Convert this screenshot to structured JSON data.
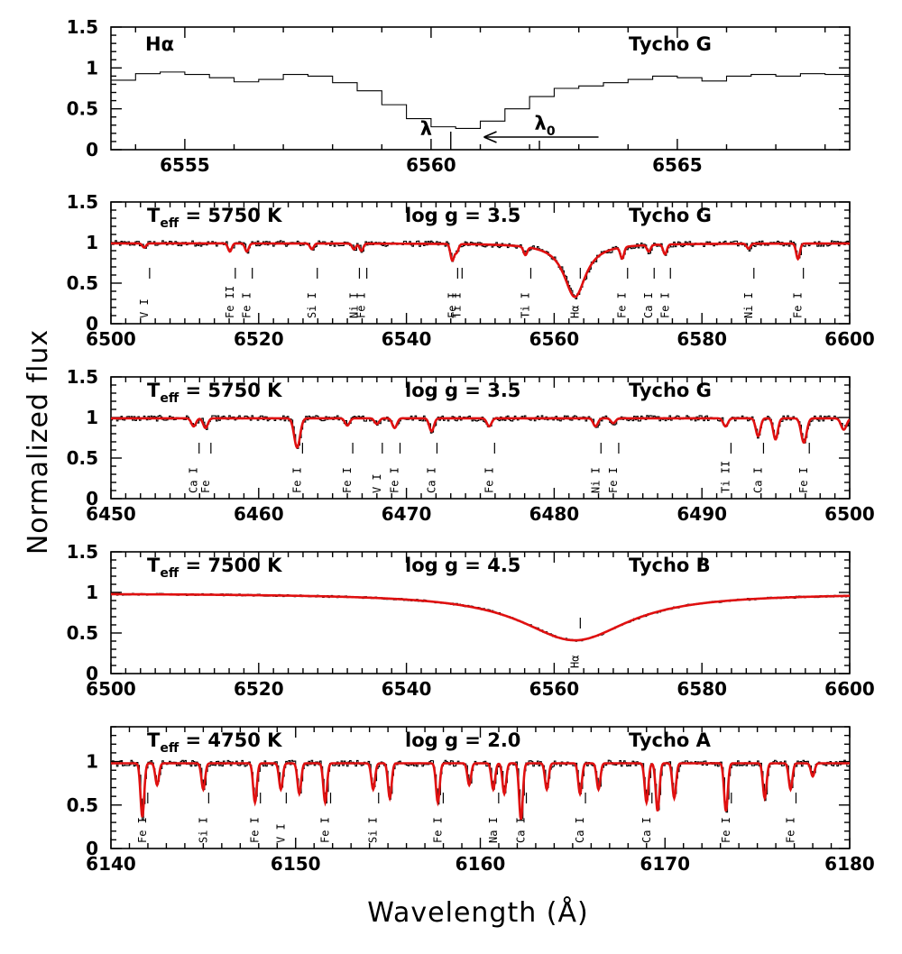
{
  "figure": {
    "xlabel": "Wavelength (Å)",
    "ylabel": "Normalized flux"
  },
  "colors": {
    "observed": "#000000",
    "model": "#e01010"
  },
  "chart_data": [
    {
      "type": "line",
      "panel": "halpha-zoom",
      "xlim": [
        6553.5,
        6568.5
      ],
      "ylim": [
        0,
        1.5
      ],
      "xticks": [
        "6555",
        "6560",
        "6565"
      ],
      "yticks": [
        "0",
        "0.5",
        "1",
        "1.5"
      ],
      "top_left_label": "Hα",
      "top_right_label": "Tycho G",
      "markers": {
        "lambda": "λ",
        "lambda0": "λ0",
        "lambda_x": 6560.4,
        "lambda0_x": 6561.0
      },
      "series": [
        {
          "style": "step",
          "x": [
            6553.5,
            6554,
            6554.5,
            6555,
            6555.5,
            6556,
            6556.5,
            6557,
            6557.5,
            6558,
            6558.5,
            6559,
            6559.5,
            6560,
            6560.5,
            6561,
            6561.5,
            6562,
            6562.5,
            6563,
            6563.5,
            6564,
            6564.5,
            6565,
            6565.5,
            6566,
            6566.5,
            6567,
            6567.5,
            6568
          ],
          "y": [
            0.85,
            0.93,
            0.95,
            0.92,
            0.88,
            0.83,
            0.86,
            0.92,
            0.9,
            0.82,
            0.72,
            0.55,
            0.38,
            0.28,
            0.26,
            0.35,
            0.5,
            0.65,
            0.75,
            0.78,
            0.82,
            0.86,
            0.9,
            0.88,
            0.84,
            0.9,
            0.92,
            0.9,
            0.93,
            0.92
          ]
        }
      ]
    },
    {
      "type": "line",
      "panel": "tycho-g-6500",
      "xlim": [
        6500,
        6600
      ],
      "ylim": [
        0,
        1.5
      ],
      "xticks": [
        "6500",
        "6520",
        "6540",
        "6560",
        "6580",
        "6600"
      ],
      "yticks": [
        "0",
        "0.5",
        "1",
        "1.5"
      ],
      "teff_label": "T",
      "teff_sub": "eff",
      "teff_value": "= 5750 K",
      "logg_label": "log g = 3.5",
      "star_label": "Tycho G",
      "continuum": 0.99,
      "hydrogen_line": {
        "center": 6562.8,
        "depth": 0.66,
        "width": 1.8
      },
      "lines": [
        {
          "x": 6504.5,
          "depth": 0.05,
          "width": 0.35,
          "label": "V I"
        },
        {
          "x": 6516.1,
          "depth": 0.1,
          "width": 0.35,
          "label": "Fe II"
        },
        {
          "x": 6518.4,
          "depth": 0.1,
          "width": 0.35,
          "label": "Fe I"
        },
        {
          "x": 6527.2,
          "depth": 0.07,
          "width": 0.35,
          "label": "Si I"
        },
        {
          "x": 6532.9,
          "depth": 0.07,
          "width": 0.35,
          "label": "Ni I"
        },
        {
          "x": 6533.9,
          "depth": 0.09,
          "width": 0.35,
          "label": "Fe I"
        },
        {
          "x": 6546.2,
          "depth": 0.2,
          "width": 0.35,
          "label": "Fe I"
        },
        {
          "x": 6546.8,
          "depth": 0.1,
          "width": 0.35,
          "label": "Ti I"
        },
        {
          "x": 6556.1,
          "depth": 0.1,
          "width": 0.35,
          "label": "Ti I"
        },
        {
          "x": 6562.8,
          "depth": 0.0,
          "width": 0.35,
          "label": "Hα"
        },
        {
          "x": 6569.2,
          "depth": 0.14,
          "width": 0.35,
          "label": "Fe I"
        },
        {
          "x": 6572.8,
          "depth": 0.08,
          "width": 0.35,
          "label": "Ca I"
        },
        {
          "x": 6575.0,
          "depth": 0.12,
          "width": 0.35,
          "label": "Fe I"
        },
        {
          "x": 6586.3,
          "depth": 0.06,
          "width": 0.35,
          "label": "Ni I"
        },
        {
          "x": 6593.0,
          "depth": 0.19,
          "width": 0.35,
          "label": "Fe I"
        }
      ]
    },
    {
      "type": "line",
      "panel": "tycho-g-6450",
      "xlim": [
        6450,
        6500
      ],
      "ylim": [
        0,
        1.5
      ],
      "xticks": [
        "6450",
        "6460",
        "6470",
        "6480",
        "6490",
        "6500"
      ],
      "yticks": [
        "0",
        "0.5",
        "1",
        "1.5"
      ],
      "teff_label": "T",
      "teff_sub": "eff",
      "teff_value": "= 5750 K",
      "logg_label": "log g = 3.5",
      "star_label": "Tycho G",
      "continuum": 0.99,
      "lines": [
        {
          "x": 6455.6,
          "depth": 0.1,
          "width": 0.22,
          "label": "Ca I"
        },
        {
          "x": 6456.4,
          "depth": 0.12,
          "width": 0.22,
          "label": "Fe"
        },
        {
          "x": 6462.6,
          "depth": 0.36,
          "width": 0.28,
          "label": "Fe I"
        },
        {
          "x": 6466.0,
          "depth": 0.09,
          "width": 0.22,
          "label": "Fe I"
        },
        {
          "x": 6468.0,
          "depth": 0.07,
          "width": 0.22,
          "label": "V I"
        },
        {
          "x": 6469.2,
          "depth": 0.12,
          "width": 0.22,
          "label": "Fe I"
        },
        {
          "x": 6471.7,
          "depth": 0.16,
          "width": 0.22,
          "label": "Ca I"
        },
        {
          "x": 6475.6,
          "depth": 0.1,
          "width": 0.22,
          "label": "Fe I"
        },
        {
          "x": 6482.8,
          "depth": 0.1,
          "width": 0.22,
          "label": "Ni I"
        },
        {
          "x": 6484.0,
          "depth": 0.06,
          "width": 0.22,
          "label": "Fe I"
        },
        {
          "x": 6491.6,
          "depth": 0.1,
          "width": 0.22,
          "label": "Ti II"
        },
        {
          "x": 6493.8,
          "depth": 0.22,
          "width": 0.22,
          "label": "Ca I"
        },
        {
          "x": 6494.98,
          "depth": 0.26,
          "width": 0.22,
          "label": ""
        },
        {
          "x": 6496.9,
          "depth": 0.3,
          "width": 0.26,
          "label": "Fe I"
        },
        {
          "x": 6499.6,
          "depth": 0.14,
          "width": 0.26,
          "label": ""
        }
      ]
    },
    {
      "type": "line",
      "panel": "tycho-b",
      "xlim": [
        6500,
        6600
      ],
      "ylim": [
        0,
        1.5
      ],
      "xticks": [
        "6500",
        "6520",
        "6540",
        "6560",
        "6580",
        "6600"
      ],
      "yticks": [
        "0",
        "0.5",
        "1",
        "1.5"
      ],
      "teff_label": "T",
      "teff_sub": "eff",
      "teff_value": "= 7500 K",
      "logg_label": "log g = 4.5",
      "star_label": "Tycho B",
      "continuum": 0.99,
      "hydrogen_line": {
        "center": 6562.8,
        "depth": 0.58,
        "width": 9.0
      },
      "lines": [
        {
          "x": 6562.8,
          "depth": 0.0,
          "width": 0.5,
          "label": "Hα"
        }
      ]
    },
    {
      "type": "line",
      "panel": "tycho-a",
      "xlim": [
        6140,
        6180
      ],
      "ylim": [
        0,
        1.4
      ],
      "xticks": [
        "6140",
        "6150",
        "6160",
        "6170",
        "6180"
      ],
      "yticks": [
        "0",
        "0.5",
        "1"
      ],
      "teff_label": "T",
      "teff_sub": "eff",
      "teff_value": "= 4750 K",
      "logg_label": "log g = 2.0",
      "star_label": "Tycho A",
      "continuum": 0.98,
      "lines": [
        {
          "x": 6141.7,
          "depth": 0.62,
          "width": 0.14,
          "label": "Fe I"
        },
        {
          "x": 6142.5,
          "depth": 0.25,
          "width": 0.14,
          "label": ""
        },
        {
          "x": 6145.0,
          "depth": 0.3,
          "width": 0.14,
          "label": "Si I"
        },
        {
          "x": 6147.8,
          "depth": 0.45,
          "width": 0.14,
          "label": "Fe I"
        },
        {
          "x": 6149.2,
          "depth": 0.3,
          "width": 0.14,
          "label": "V I"
        },
        {
          "x": 6150.2,
          "depth": 0.35,
          "width": 0.14,
          "label": ""
        },
        {
          "x": 6151.6,
          "depth": 0.45,
          "width": 0.14,
          "label": "Fe I"
        },
        {
          "x": 6154.2,
          "depth": 0.3,
          "width": 0.14,
          "label": "Si I"
        },
        {
          "x": 6155.1,
          "depth": 0.4,
          "width": 0.14,
          "label": ""
        },
        {
          "x": 6157.7,
          "depth": 0.45,
          "width": 0.14,
          "label": "Fe I"
        },
        {
          "x": 6159.4,
          "depth": 0.25,
          "width": 0.14,
          "label": ""
        },
        {
          "x": 6160.7,
          "depth": 0.3,
          "width": 0.14,
          "label": "Na I"
        },
        {
          "x": 6161.3,
          "depth": 0.35,
          "width": 0.14,
          "label": ""
        },
        {
          "x": 6162.2,
          "depth": 0.65,
          "width": 0.14,
          "label": "Ca I"
        },
        {
          "x": 6163.6,
          "depth": 0.3,
          "width": 0.14,
          "label": ""
        },
        {
          "x": 6165.4,
          "depth": 0.35,
          "width": 0.14,
          "label": "Ca I"
        },
        {
          "x": 6166.4,
          "depth": 0.3,
          "width": 0.14,
          "label": ""
        },
        {
          "x": 6169.0,
          "depth": 0.45,
          "width": 0.14,
          "label": "Ca I"
        },
        {
          "x": 6169.6,
          "depth": 0.55,
          "width": 0.14,
          "label": ""
        },
        {
          "x": 6170.5,
          "depth": 0.4,
          "width": 0.14,
          "label": ""
        },
        {
          "x": 6173.3,
          "depth": 0.55,
          "width": 0.14,
          "label": "Fe I"
        },
        {
          "x": 6175.4,
          "depth": 0.4,
          "width": 0.14,
          "label": ""
        },
        {
          "x": 6176.8,
          "depth": 0.3,
          "width": 0.14,
          "label": "Fe I"
        },
        {
          "x": 6178.0,
          "depth": 0.15,
          "width": 0.14,
          "label": ""
        }
      ]
    }
  ]
}
